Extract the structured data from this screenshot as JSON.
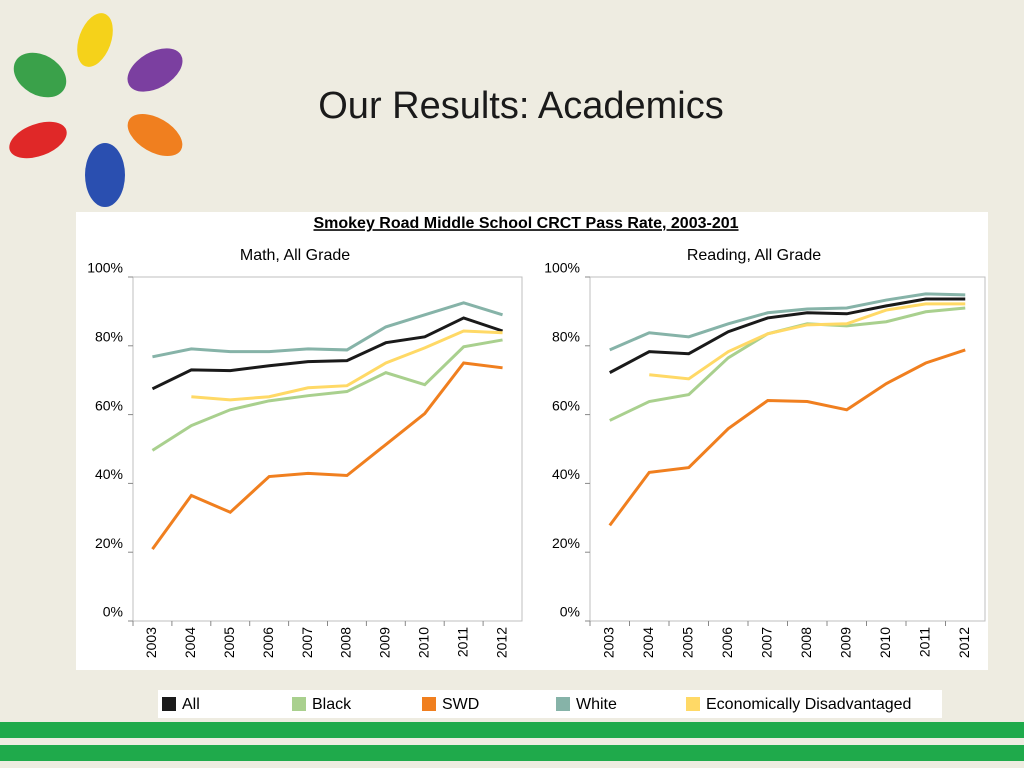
{
  "slide_title": "Our Results: Academics",
  "figure_title": "Smokey Road Middle School CRCT Pass Rate, 2003-201",
  "chart_data": [
    {
      "type": "line",
      "title": "Math, All Grade",
      "categories": [
        "2003",
        "2004",
        "2005",
        "2006",
        "2007",
        "2008",
        "2009",
        "2010",
        "2011",
        "2012"
      ],
      "ylim": [
        0,
        100
      ],
      "yticks": [
        {
          "value": 0,
          "label": "0%"
        },
        {
          "value": 20,
          "label": "20%"
        },
        {
          "value": 40,
          "label": "40%"
        },
        {
          "value": 60,
          "label": "60%"
        },
        {
          "value": 80,
          "label": "80%"
        },
        {
          "value": 100,
          "label": "100%"
        }
      ],
      "grid": false,
      "series": [
        {
          "name": "All",
          "color": "#1a1a1a",
          "values": [
            67.5,
            73,
            72.8,
            74.2,
            75.4,
            75.7,
            80.9,
            82.6,
            88.1,
            84.3
          ]
        },
        {
          "name": "Black",
          "color": "#a9d08e",
          "values": [
            49.6,
            56.8,
            61.4,
            64,
            65.5,
            66.7,
            72.2,
            68.7,
            79.7,
            81.7
          ]
        },
        {
          "name": "SWD",
          "color": "#f07f1f",
          "values": [
            20.9,
            36.5,
            31.6,
            42,
            42.9,
            42.3,
            51.3,
            60.3,
            75,
            73.6
          ]
        },
        {
          "name": "White",
          "color": "#86b3a8",
          "values": [
            76.8,
            79.1,
            78.3,
            78.3,
            79.1,
            78.8,
            85.5,
            89,
            92.5,
            89
          ]
        },
        {
          "name": "Economically Disadvantaged",
          "color": "#ffd966",
          "values": [
            null,
            65.2,
            64.3,
            65.2,
            67.8,
            68.4,
            75,
            79.4,
            84.3,
            83.8
          ]
        }
      ]
    },
    {
      "type": "line",
      "title": "Reading, All Grade",
      "categories": [
        "2003",
        "2004",
        "2005",
        "2006",
        "2007",
        "2008",
        "2009",
        "2010",
        "2011",
        "2012"
      ],
      "ylim": [
        0,
        100
      ],
      "yticks": [
        {
          "value": 0,
          "label": "0%"
        },
        {
          "value": 20,
          "label": "20%"
        },
        {
          "value": 40,
          "label": "40%"
        },
        {
          "value": 60,
          "label": "60%"
        },
        {
          "value": 80,
          "label": "80%"
        },
        {
          "value": 100,
          "label": "100%"
        }
      ],
      "grid": false,
      "series": [
        {
          "name": "All",
          "color": "#1a1a1a",
          "values": [
            72.2,
            78.3,
            77.7,
            84.1,
            88.1,
            89.6,
            89.3,
            91.6,
            93.6,
            93.6
          ]
        },
        {
          "name": "Black",
          "color": "#a9d08e",
          "values": [
            58.3,
            63.8,
            65.8,
            76.5,
            83.5,
            86.4,
            85.8,
            87,
            89.9,
            91
          ]
        },
        {
          "name": "SWD",
          "color": "#f07f1f",
          "values": [
            27.8,
            43.2,
            44.6,
            55.9,
            64.1,
            63.8,
            61.4,
            69,
            75,
            78.8
          ]
        },
        {
          "name": "White",
          "color": "#86b3a8",
          "values": [
            78.8,
            83.8,
            82.6,
            86.4,
            89.6,
            90.7,
            91,
            93.3,
            95.1,
            94.8
          ]
        },
        {
          "name": "Economically Disadvantaged",
          "color": "#ffd966",
          "values": [
            null,
            71.6,
            70.4,
            78.3,
            83.5,
            86.1,
            86.4,
            90.4,
            92.2,
            92.2
          ]
        }
      ]
    }
  ]
}
